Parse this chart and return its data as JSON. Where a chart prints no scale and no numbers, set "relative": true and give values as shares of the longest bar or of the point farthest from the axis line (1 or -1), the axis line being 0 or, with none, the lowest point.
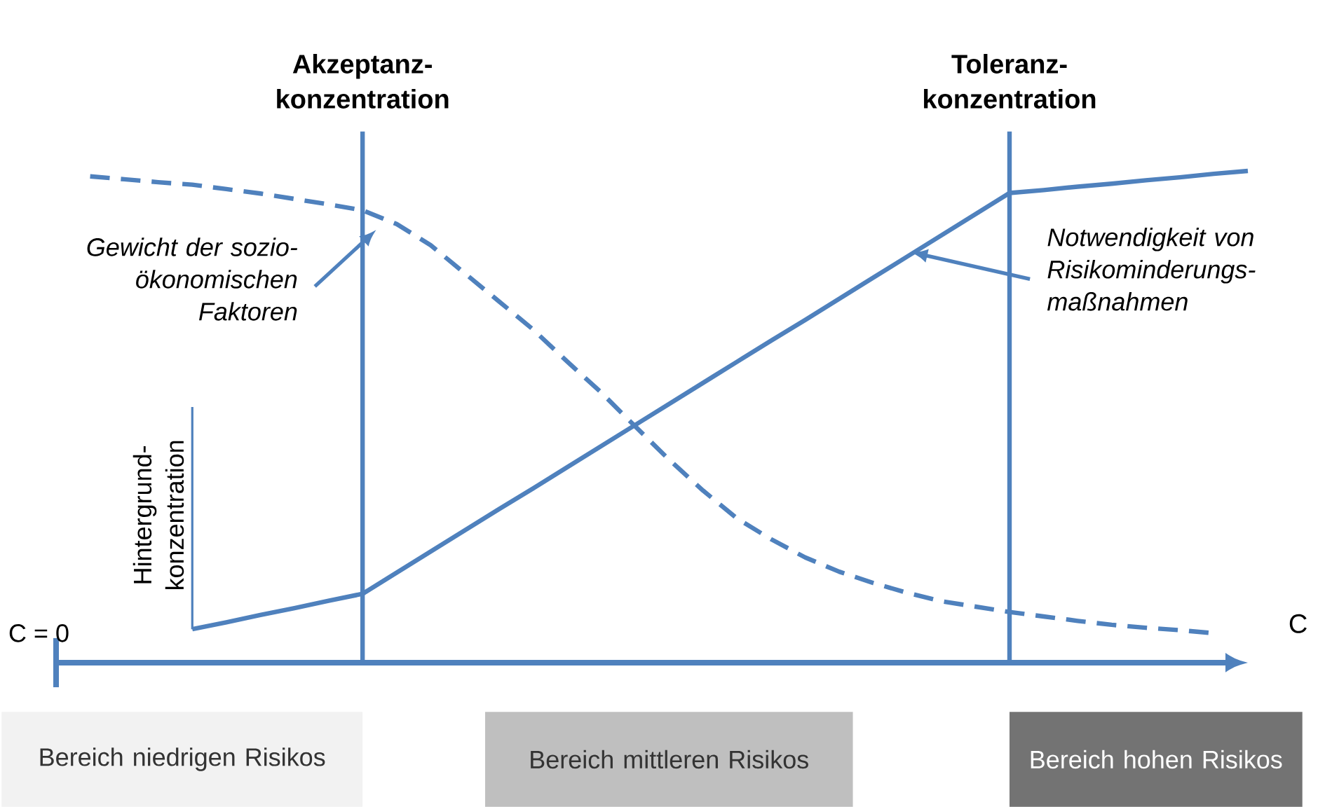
{
  "chart_data": {
    "type": "line",
    "relative": true,
    "xlabel": "C",
    "marker": "none",
    "categories": [
      null,
      null,
      null,
      null,
      null,
      null,
      null,
      null,
      null,
      null,
      null,
      null,
      null,
      null,
      null,
      null,
      null,
      null,
      null,
      null,
      null,
      null,
      null,
      null,
      null,
      null,
      null,
      null,
      null,
      null,
      null,
      null,
      null,
      null,
      null,
      null
    ],
    "series": [
      {
        "values": [
          null,
          null,
          null,
          null,
          0.068,
          0.082,
          0.097,
          0.111,
          0.126,
          0.14,
          0.183,
          0.226,
          0.269,
          0.312,
          0.354,
          0.397,
          0.44,
          0.483,
          0.526,
          0.569,
          0.612,
          0.655,
          0.697,
          0.74,
          0.783,
          0.826,
          0.869,
          0.912,
          0.955,
          0.961,
          0.968,
          0.974,
          0.981,
          0.987,
          0.994,
          1
        ],
        "color": "#4f81bd",
        "line_style": "solid"
      },
      {
        "values": [
          null,
          0.989,
          0.983,
          0.977,
          0.972,
          0.963,
          0.954,
          0.943,
          0.932,
          0.92,
          0.892,
          0.849,
          0.792,
          0.735,
          0.678,
          0.613,
          0.55,
          0.481,
          0.413,
          0.35,
          0.293,
          0.251,
          0.214,
          0.185,
          0.162,
          0.142,
          0.125,
          0.114,
          0.103,
          0.094,
          0.085,
          0.077,
          0.071,
          0.066,
          0.06,
          null
        ],
        "color": "#4f81bd",
        "line_style": "dashed"
      }
    ],
    "annotations": [
      "Gewicht der sozio-ökonomischen Faktoren",
      "Notwendigkeit von Risikominderungs-maßnahmen",
      "Hintergrund-konzentration",
      "C = 0",
      "Akzeptanz-konzentration",
      "Toleranz-konzentration",
      "Bereich niedrigen Risikos",
      "Bereich mittleren Risikos",
      "Bereich hohen Risikos"
    ]
  }
}
